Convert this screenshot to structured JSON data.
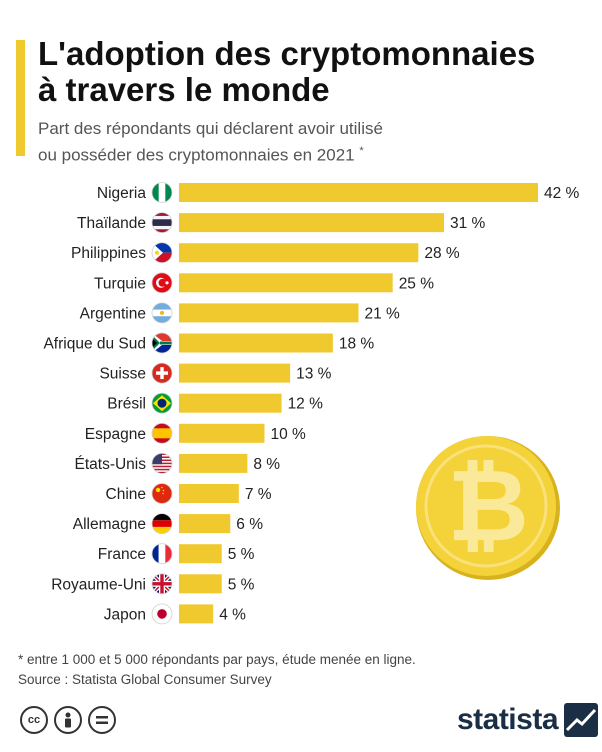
{
  "header": {
    "title_line1": "L'adoption des cryptomonnaies",
    "title_line2": "à travers le monde",
    "subtitle_line1": "Part des répondants qui déclarent avoir utilisé",
    "subtitle_line2": "ou posséder des cryptomonnaies en 2021",
    "subtitle_marker": "*"
  },
  "chart_data": {
    "type": "bar",
    "orientation": "horizontal",
    "title": "L'adoption des cryptomonnaies à travers le monde",
    "subtitle": "Part des répondants qui déclarent avoir utilisé ou posséder des cryptomonnaies en 2021 *",
    "categories": [
      "Nigeria",
      "Thaïlande",
      "Philippines",
      "Turquie",
      "Argentine",
      "Afrique du Sud",
      "Suisse",
      "Brésil",
      "Espagne",
      "États-Unis",
      "Chine",
      "Allemagne",
      "France",
      "Royaume-Uni",
      "Japon"
    ],
    "values": [
      42,
      31,
      28,
      25,
      21,
      18,
      13,
      12,
      10,
      8,
      7,
      6,
      5,
      5,
      4
    ],
    "unit": "%",
    "value_suffix": " %",
    "xlim": [
      0,
      42
    ],
    "bar_color": "#f0c92e",
    "grid": false,
    "xlabel": "",
    "ylabel": ""
  },
  "flags": [
    "nigeria-flag-icon",
    "thailand-flag-icon",
    "philippines-flag-icon",
    "turkey-flag-icon",
    "argentina-flag-icon",
    "south-africa-flag-icon",
    "switzerland-flag-icon",
    "brazil-flag-icon",
    "spain-flag-icon",
    "usa-flag-icon",
    "china-flag-icon",
    "germany-flag-icon",
    "france-flag-icon",
    "uk-flag-icon",
    "japan-flag-icon"
  ],
  "decoration": {
    "coin_icon": "bitcoin-coin-icon"
  },
  "footer": {
    "note": "* entre 1 000 et 5 000 répondants par pays, étude menée en ligne.",
    "source": "Source : Statista Global Consumer Survey",
    "license_icons": [
      "cc-icon",
      "by-icon",
      "nd-icon"
    ],
    "brand": "statista"
  },
  "colors": {
    "accent": "#f0c92e",
    "title": "#111111",
    "brand": "#1a2e45"
  }
}
